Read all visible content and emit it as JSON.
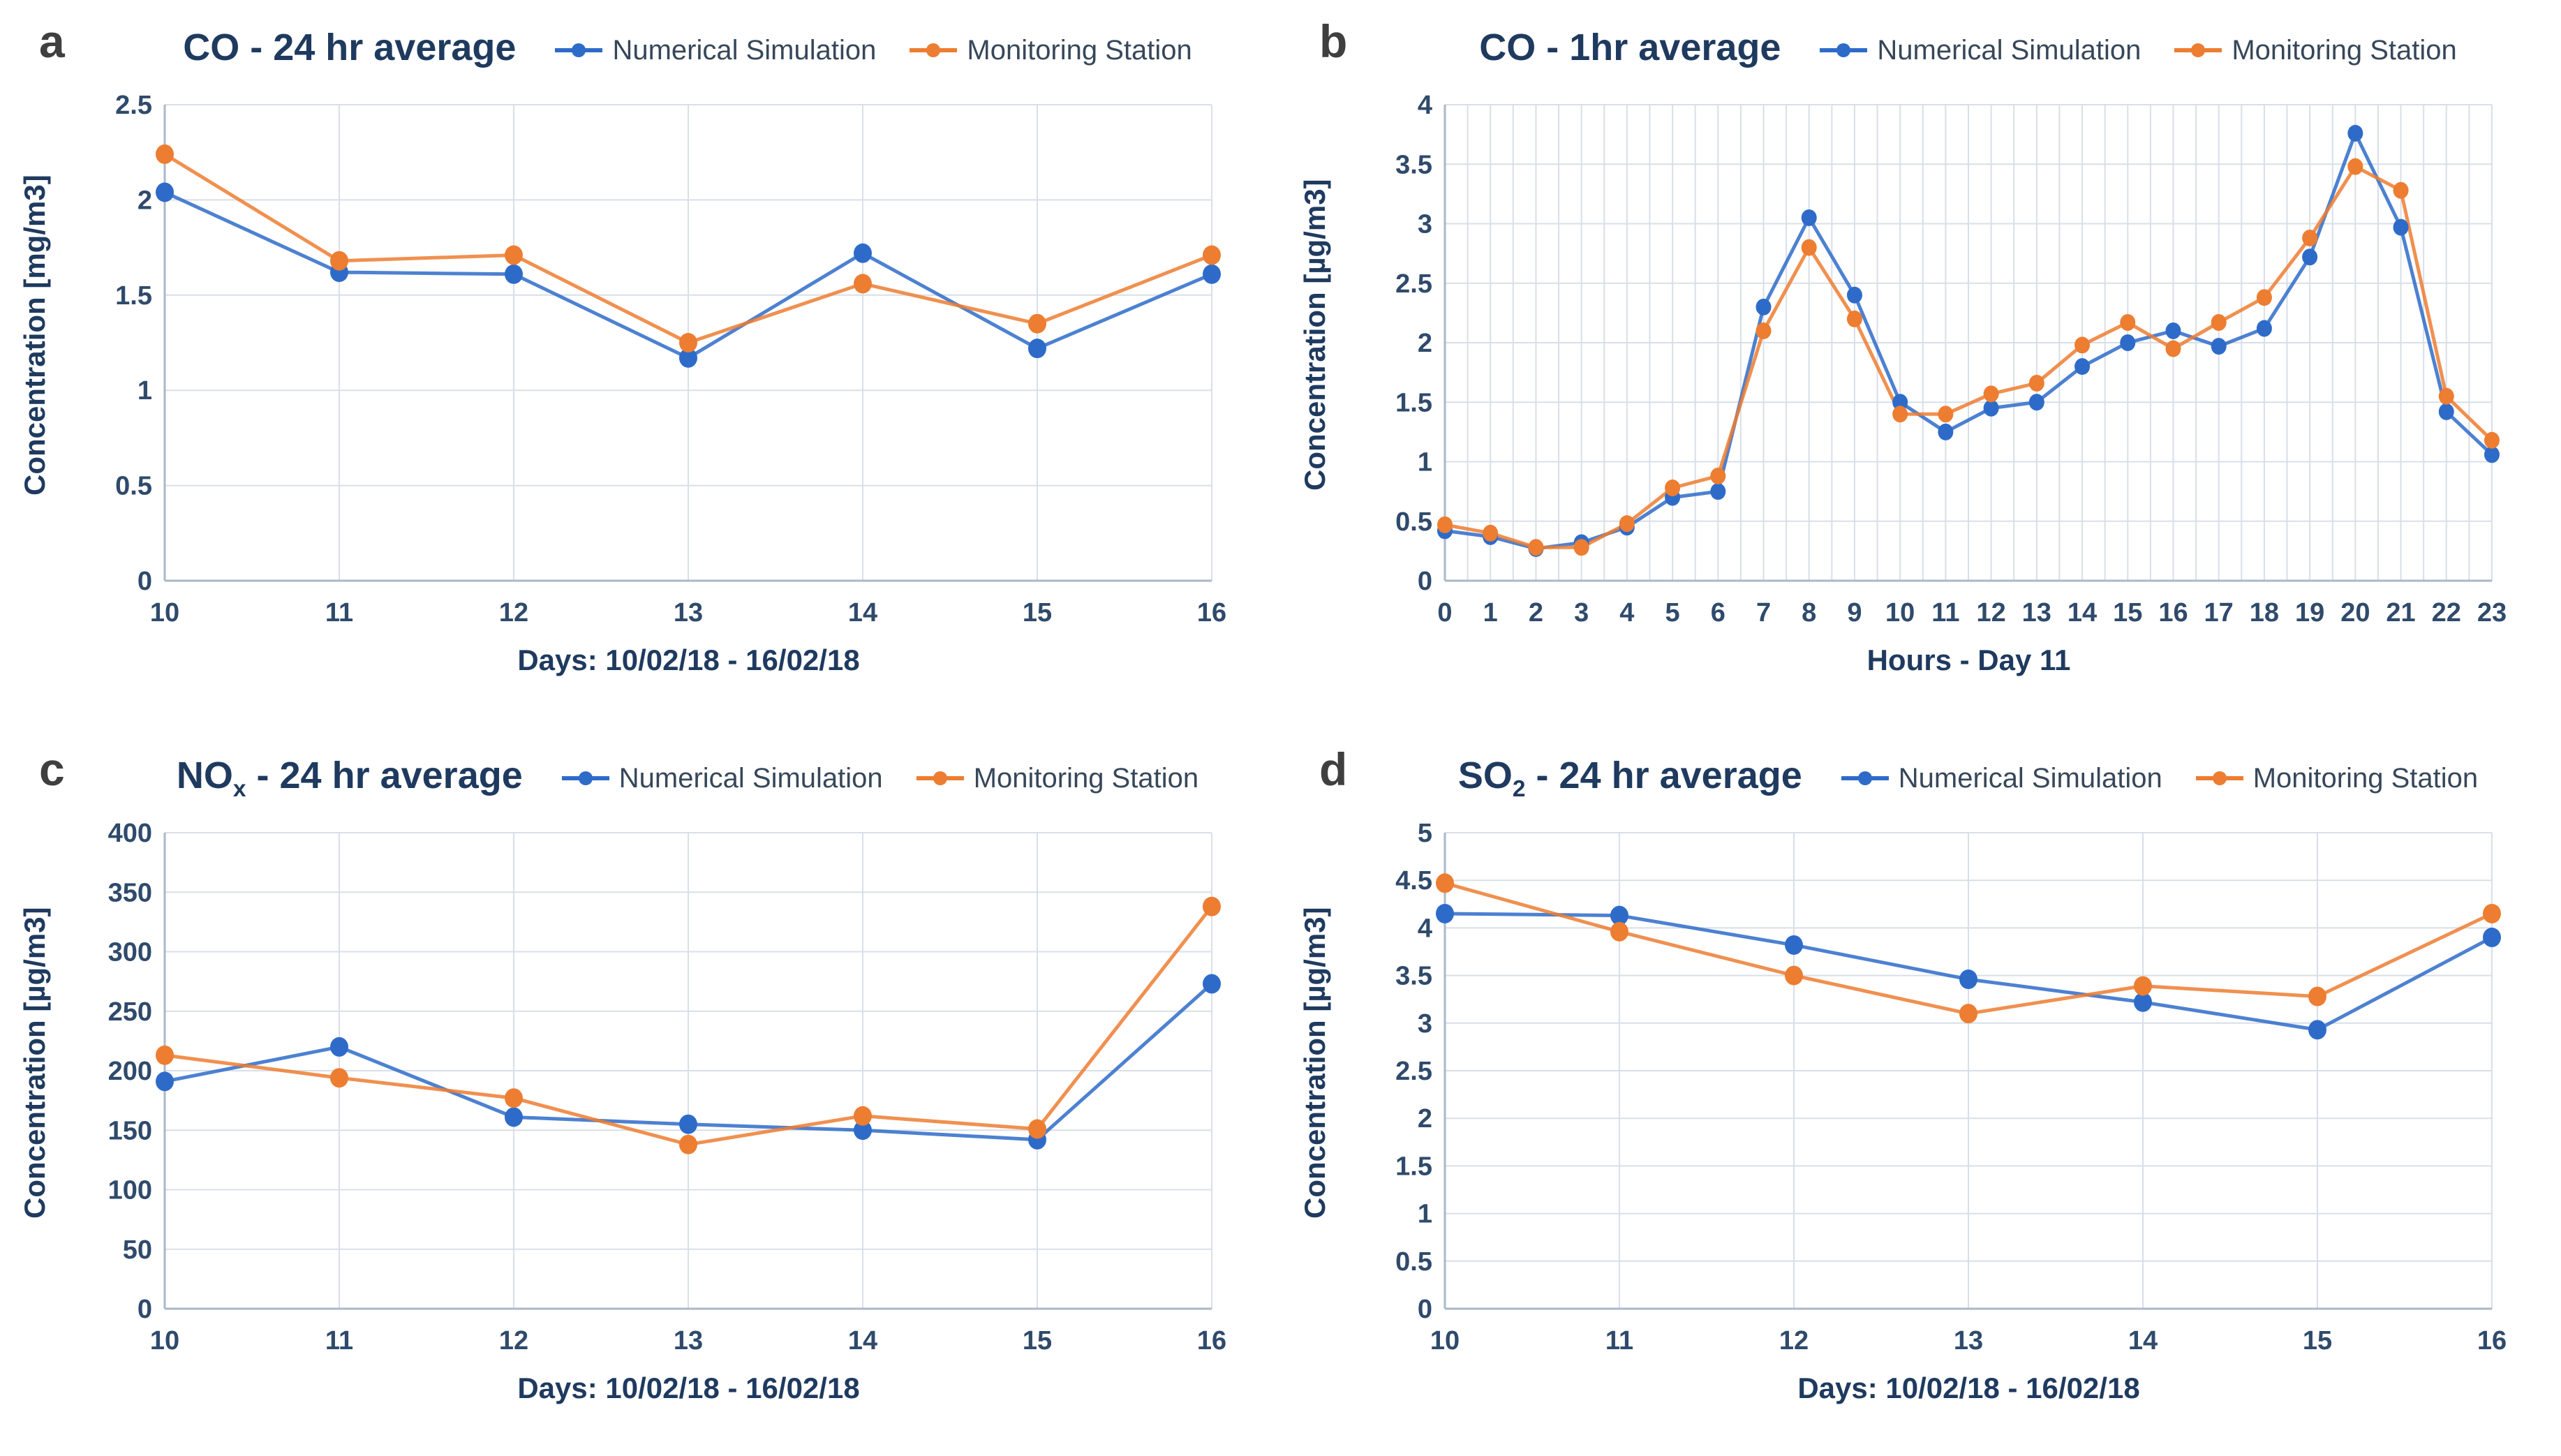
{
  "legend_labels": [
    "Numerical Simulation",
    "Monitoring Station"
  ],
  "colors": {
    "simulation": "#2e6bc9",
    "monitoring": "#ed7d31",
    "title": "#1f3a5f",
    "tick": "#2f4a6b",
    "letter": "#3f3f3f",
    "grid": "#d8dfe8",
    "axis": "#a9b8c9"
  },
  "chart_data": [
    {
      "letter": "a",
      "type": "line",
      "title": {
        "main": "CO",
        "sub": "",
        "rest": " - 24 hr average"
      },
      "xlabel": "Days: 10/02/18 - 16/02/18",
      "ylabel": "Concentration [mg/m3]",
      "x": [
        10,
        11,
        12,
        13,
        14,
        15,
        16
      ],
      "ylim": [
        0,
        2.5
      ],
      "ytick_step": 0.5,
      "x_minor": false,
      "legend_position": "top-right",
      "grid": true,
      "series": [
        {
          "name": "Numerical Simulation",
          "color_key": "simulation",
          "values": [
            2.04,
            1.62,
            1.61,
            1.17,
            1.72,
            1.22,
            1.61
          ]
        },
        {
          "name": "Monitoring Station",
          "color_key": "monitoring",
          "values": [
            2.24,
            1.68,
            1.71,
            1.25,
            1.56,
            1.35,
            1.71
          ]
        }
      ]
    },
    {
      "letter": "b",
      "type": "line",
      "title": {
        "main": "CO",
        "sub": "",
        "rest": " - 1hr average"
      },
      "xlabel": "Hours - Day 11",
      "ylabel": "Concentration [µg/m3]",
      "x": [
        0,
        1,
        2,
        3,
        4,
        5,
        6,
        7,
        8,
        9,
        10,
        11,
        12,
        13,
        14,
        15,
        16,
        17,
        18,
        19,
        20,
        21,
        22,
        23
      ],
      "ylim": [
        0,
        4
      ],
      "ytick_step": 0.5,
      "x_minor": true,
      "legend_position": "top-right",
      "grid": true,
      "series": [
        {
          "name": "Numerical Simulation",
          "color_key": "simulation",
          "values": [
            0.42,
            0.37,
            0.27,
            0.32,
            0.45,
            0.7,
            0.75,
            2.3,
            3.05,
            2.4,
            1.5,
            1.25,
            1.45,
            1.5,
            1.8,
            2.0,
            2.1,
            1.97,
            2.12,
            2.72,
            3.76,
            2.97,
            1.42,
            1.06
          ]
        },
        {
          "name": "Monitoring Station",
          "color_key": "monitoring",
          "values": [
            0.47,
            0.4,
            0.28,
            0.28,
            0.48,
            0.78,
            0.88,
            2.1,
            2.8,
            2.2,
            1.4,
            1.4,
            1.57,
            1.66,
            1.98,
            2.17,
            1.95,
            2.17,
            2.38,
            2.88,
            3.48,
            3.28,
            1.55,
            1.18
          ]
        }
      ]
    },
    {
      "letter": "c",
      "type": "line",
      "title": {
        "main": "NO",
        "sub": "x",
        "rest": " - 24 hr average"
      },
      "xlabel": "Days: 10/02/18 - 16/02/18",
      "ylabel": "Concentration [µg/m3]",
      "x": [
        10,
        11,
        12,
        13,
        14,
        15,
        16
      ],
      "ylim": [
        0,
        400
      ],
      "ytick_step": 50,
      "x_minor": false,
      "legend_position": "top-right",
      "grid": true,
      "series": [
        {
          "name": "Numerical Simulation",
          "color_key": "simulation",
          "values": [
            191,
            220,
            161,
            155,
            150,
            142,
            273
          ]
        },
        {
          "name": "Monitoring Station",
          "color_key": "monitoring",
          "values": [
            213,
            194,
            177,
            138,
            162,
            151,
            338
          ]
        }
      ]
    },
    {
      "letter": "d",
      "type": "line",
      "title": {
        "main": "SO",
        "sub": "2",
        "rest": " - 24 hr average"
      },
      "xlabel": "Days: 10/02/18 - 16/02/18",
      "ylabel": "Concentration [µg/m3]",
      "x": [
        10,
        11,
        12,
        13,
        14,
        15,
        16
      ],
      "ylim": [
        0,
        5
      ],
      "ytick_step": 0.5,
      "x_minor": false,
      "legend_position": "top-right",
      "grid": true,
      "series": [
        {
          "name": "Numerical Simulation",
          "color_key": "simulation",
          "values": [
            4.15,
            4.13,
            3.82,
            3.46,
            3.22,
            2.93,
            3.9
          ]
        },
        {
          "name": "Monitoring Station",
          "color_key": "monitoring",
          "values": [
            4.47,
            3.96,
            3.5,
            3.1,
            3.39,
            3.28,
            4.15
          ]
        }
      ]
    }
  ]
}
